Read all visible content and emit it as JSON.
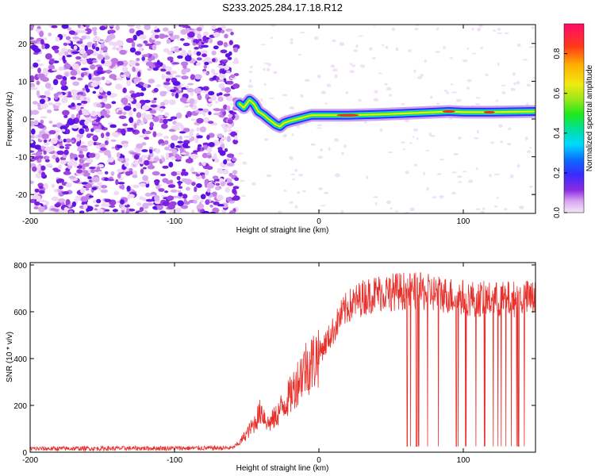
{
  "title": "S233.2025.284.17.18.R12",
  "chart_data": [
    {
      "type": "heatmap",
      "name": "spectrogram",
      "xlabel": "Height of straight line (km)",
      "ylabel": "Frequency (Hz)",
      "xlim": [
        -200,
        150
      ],
      "ylim": [
        -25,
        25
      ],
      "xticks": [
        -200,
        -100,
        0,
        100
      ],
      "yticks": [
        -20,
        -10,
        0,
        10,
        20
      ],
      "noise_region_x": [
        -200,
        -57
      ],
      "signal_trace": [
        {
          "x": -55,
          "y": 4
        },
        {
          "x": -52,
          "y": 3
        },
        {
          "x": -48,
          "y": 5
        },
        {
          "x": -45,
          "y": 4
        },
        {
          "x": -42,
          "y": 2
        },
        {
          "x": -38,
          "y": 1
        },
        {
          "x": -35,
          "y": 0
        },
        {
          "x": -30,
          "y": -1.5
        },
        {
          "x": -27,
          "y": -2
        },
        {
          "x": -24,
          "y": -1
        },
        {
          "x": -20,
          "y": -0.5
        },
        {
          "x": -15,
          "y": 0
        },
        {
          "x": -10,
          "y": 0.5
        },
        {
          "x": -5,
          "y": 1
        },
        {
          "x": 0,
          "y": 1
        },
        {
          "x": 10,
          "y": 1
        },
        {
          "x": 20,
          "y": 1
        },
        {
          "x": 40,
          "y": 1.2
        },
        {
          "x": 60,
          "y": 1.5
        },
        {
          "x": 80,
          "y": 1.8
        },
        {
          "x": 90,
          "y": 2
        },
        {
          "x": 100,
          "y": 1.8
        },
        {
          "x": 120,
          "y": 1.8
        },
        {
          "x": 150,
          "y": 2
        }
      ],
      "colorbar": {
        "label": "Normalized spectral amplitude",
        "range": [
          0,
          0.95
        ],
        "ticks": [
          0.0,
          0.2,
          0.4,
          0.6,
          0.8
        ],
        "tick_labels": [
          "0.0",
          "0.2",
          "0.4",
          "0.6",
          "0.8"
        ]
      }
    },
    {
      "type": "line",
      "name": "snr",
      "xlabel": "Height of straight line (km)",
      "ylabel": "SNR (10 * v/v)",
      "xlim": [
        -200,
        150
      ],
      "ylim": [
        0,
        810
      ],
      "xticks": [
        -200,
        -100,
        0,
        100
      ],
      "yticks": [
        0,
        200,
        400,
        600,
        800
      ],
      "color": "#e8302b",
      "envelope": {
        "x": [
          -200,
          -60,
          -55,
          -45,
          -40,
          -35,
          -30,
          -25,
          -20,
          -15,
          -10,
          -5,
          0,
          5,
          10,
          15,
          20,
          30,
          40,
          60,
          80,
          100,
          120,
          150
        ],
        "y": [
          15,
          18,
          40,
          120,
          180,
          120,
          150,
          200,
          240,
          300,
          360,
          380,
          420,
          470,
          520,
          580,
          620,
          660,
          680,
          690,
          680,
          660,
          650,
          660
        ]
      },
      "dropouts_range": [
        48,
        148
      ],
      "dropout_floor": 25
    }
  ]
}
